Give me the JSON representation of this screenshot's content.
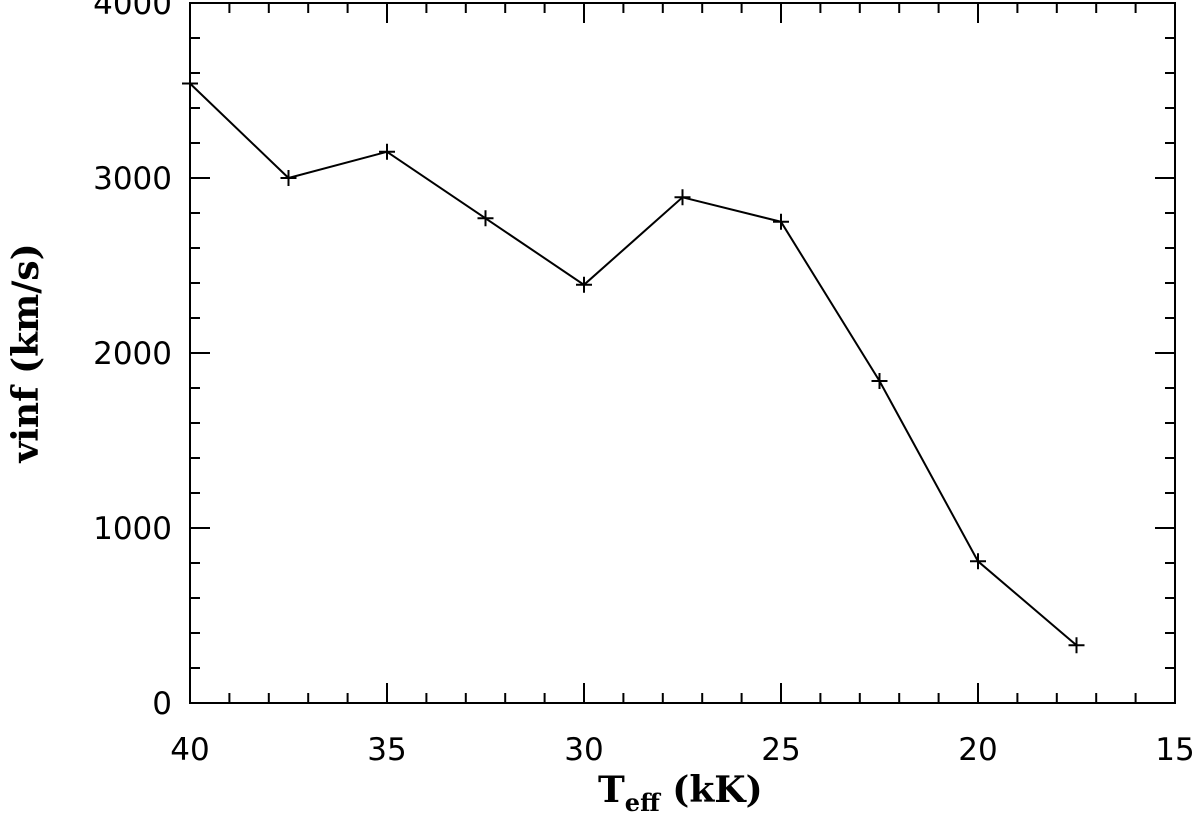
{
  "chart_data": {
    "type": "line",
    "xlabel": {
      "main": "T",
      "sub": "eff",
      "unit": " (kK)"
    },
    "ylabel": "vinf (km/s)",
    "xlim": [
      40,
      15
    ],
    "ylim": [
      0,
      4000
    ],
    "x_ticks": [
      "40",
      "35",
      "30",
      "25",
      "20",
      "15"
    ],
    "y_ticks": [
      "0",
      "1000",
      "2000",
      "3000",
      "4000"
    ],
    "marker": "plus",
    "grid": false,
    "series": [
      {
        "x": [
          40,
          37.5,
          35,
          32.5,
          30,
          27.5,
          25,
          22.5,
          20,
          17.5
        ],
        "y": [
          3540,
          3000,
          3150,
          2770,
          2390,
          2890,
          2750,
          1840,
          810,
          330
        ]
      }
    ]
  }
}
